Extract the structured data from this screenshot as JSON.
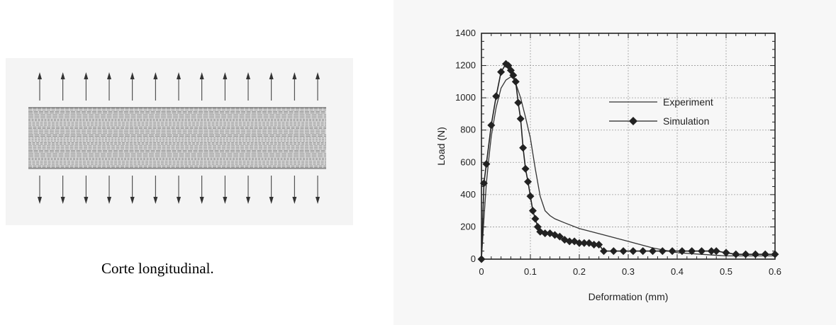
{
  "figure": {
    "caption": "Corte longitudinal."
  },
  "chart_data": {
    "type": "line",
    "xlabel": "Deformation (mm)",
    "ylabel": "Load (N)",
    "xlim": [
      0,
      0.6
    ],
    "ylim": [
      0,
      1400
    ],
    "x_ticks": [
      "0",
      "0.1",
      "0.2",
      "0.3",
      "0.4",
      "0.5",
      "0.6"
    ],
    "y_ticks": [
      "0",
      "200",
      "400",
      "600",
      "800",
      "1000",
      "1200",
      "1400"
    ],
    "grid": true,
    "legend_position": "upper-right",
    "series": [
      {
        "name": "Experiment",
        "marker": "none",
        "color": "#333333",
        "x": [
          0,
          0.005,
          0.01,
          0.015,
          0.02,
          0.03,
          0.04,
          0.05,
          0.06,
          0.065,
          0.07,
          0.08,
          0.09,
          0.1,
          0.11,
          0.12,
          0.13,
          0.14,
          0.15,
          0.17,
          0.2,
          0.25,
          0.3,
          0.35,
          0.4,
          0.45,
          0.5,
          0.55,
          0.6
        ],
        "y": [
          0,
          250,
          470,
          620,
          760,
          940,
          1060,
          1110,
          1130,
          1120,
          1090,
          1000,
          880,
          750,
          560,
          390,
          300,
          270,
          250,
          225,
          190,
          150,
          110,
          70,
          40,
          30,
          20,
          20,
          20
        ]
      },
      {
        "name": "Simulation",
        "marker": "diamond",
        "color": "#222222",
        "x": [
          0,
          0.005,
          0.01,
          0.02,
          0.03,
          0.04,
          0.05,
          0.055,
          0.06,
          0.065,
          0.07,
          0.075,
          0.08,
          0.085,
          0.09,
          0.095,
          0.1,
          0.105,
          0.11,
          0.115,
          0.12,
          0.13,
          0.14,
          0.15,
          0.16,
          0.17,
          0.18,
          0.19,
          0.2,
          0.21,
          0.22,
          0.23,
          0.24,
          0.25,
          0.27,
          0.29,
          0.31,
          0.33,
          0.35,
          0.37,
          0.39,
          0.41,
          0.43,
          0.45,
          0.47,
          0.48,
          0.5,
          0.52,
          0.54,
          0.56,
          0.58,
          0.6
        ],
        "y": [
          0,
          470,
          590,
          830,
          1010,
          1160,
          1210,
          1200,
          1170,
          1140,
          1100,
          970,
          870,
          690,
          560,
          480,
          390,
          300,
          250,
          200,
          170,
          160,
          160,
          150,
          140,
          120,
          110,
          110,
          100,
          100,
          100,
          90,
          90,
          50,
          50,
          50,
          50,
          50,
          50,
          50,
          50,
          50,
          50,
          50,
          50,
          50,
          40,
          30,
          30,
          30,
          30,
          30
        ]
      }
    ]
  }
}
